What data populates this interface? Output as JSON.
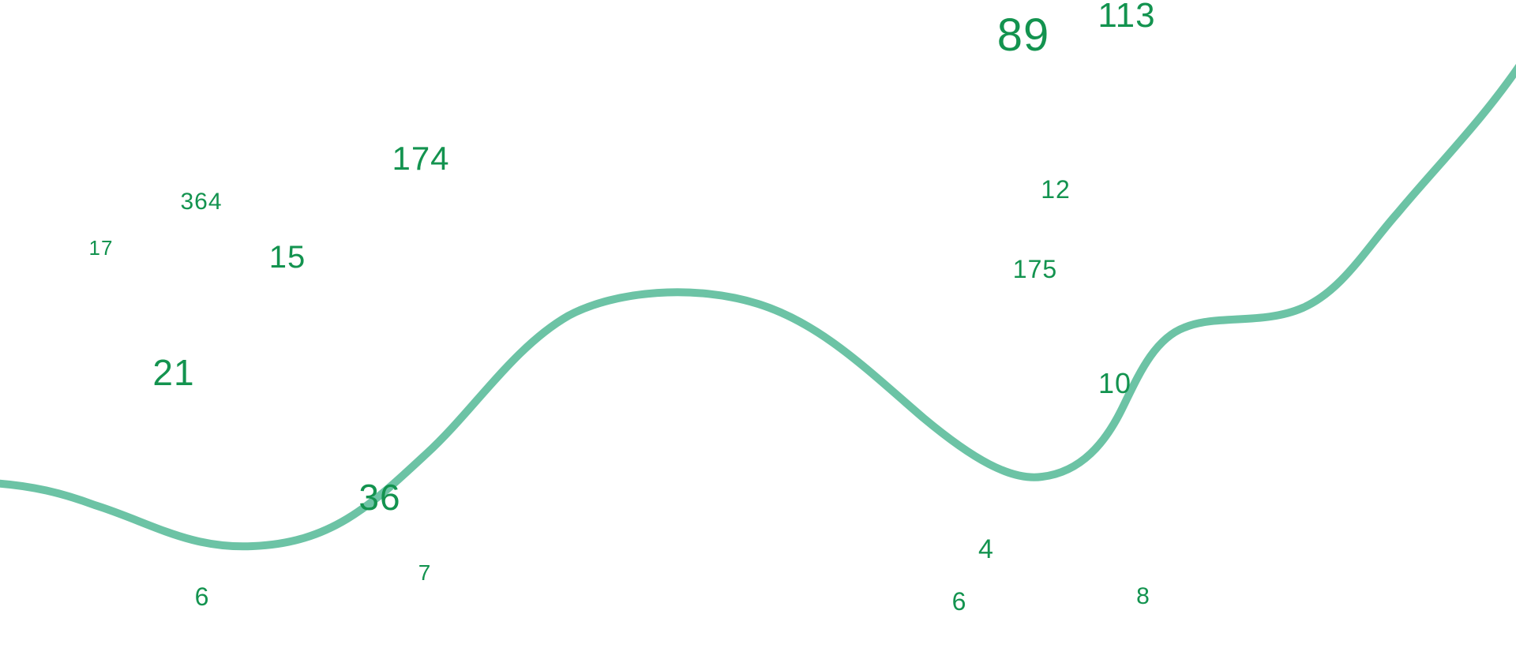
{
  "colors": {
    "number": "#13934f",
    "curve": "#6cc3a5",
    "background": "#ffffff"
  },
  "numbers": [
    "89",
    "113",
    "174",
    "12",
    "364",
    "17",
    "15",
    "175",
    "21",
    "10",
    "36",
    "4",
    "7",
    "6",
    "6",
    "8"
  ]
}
